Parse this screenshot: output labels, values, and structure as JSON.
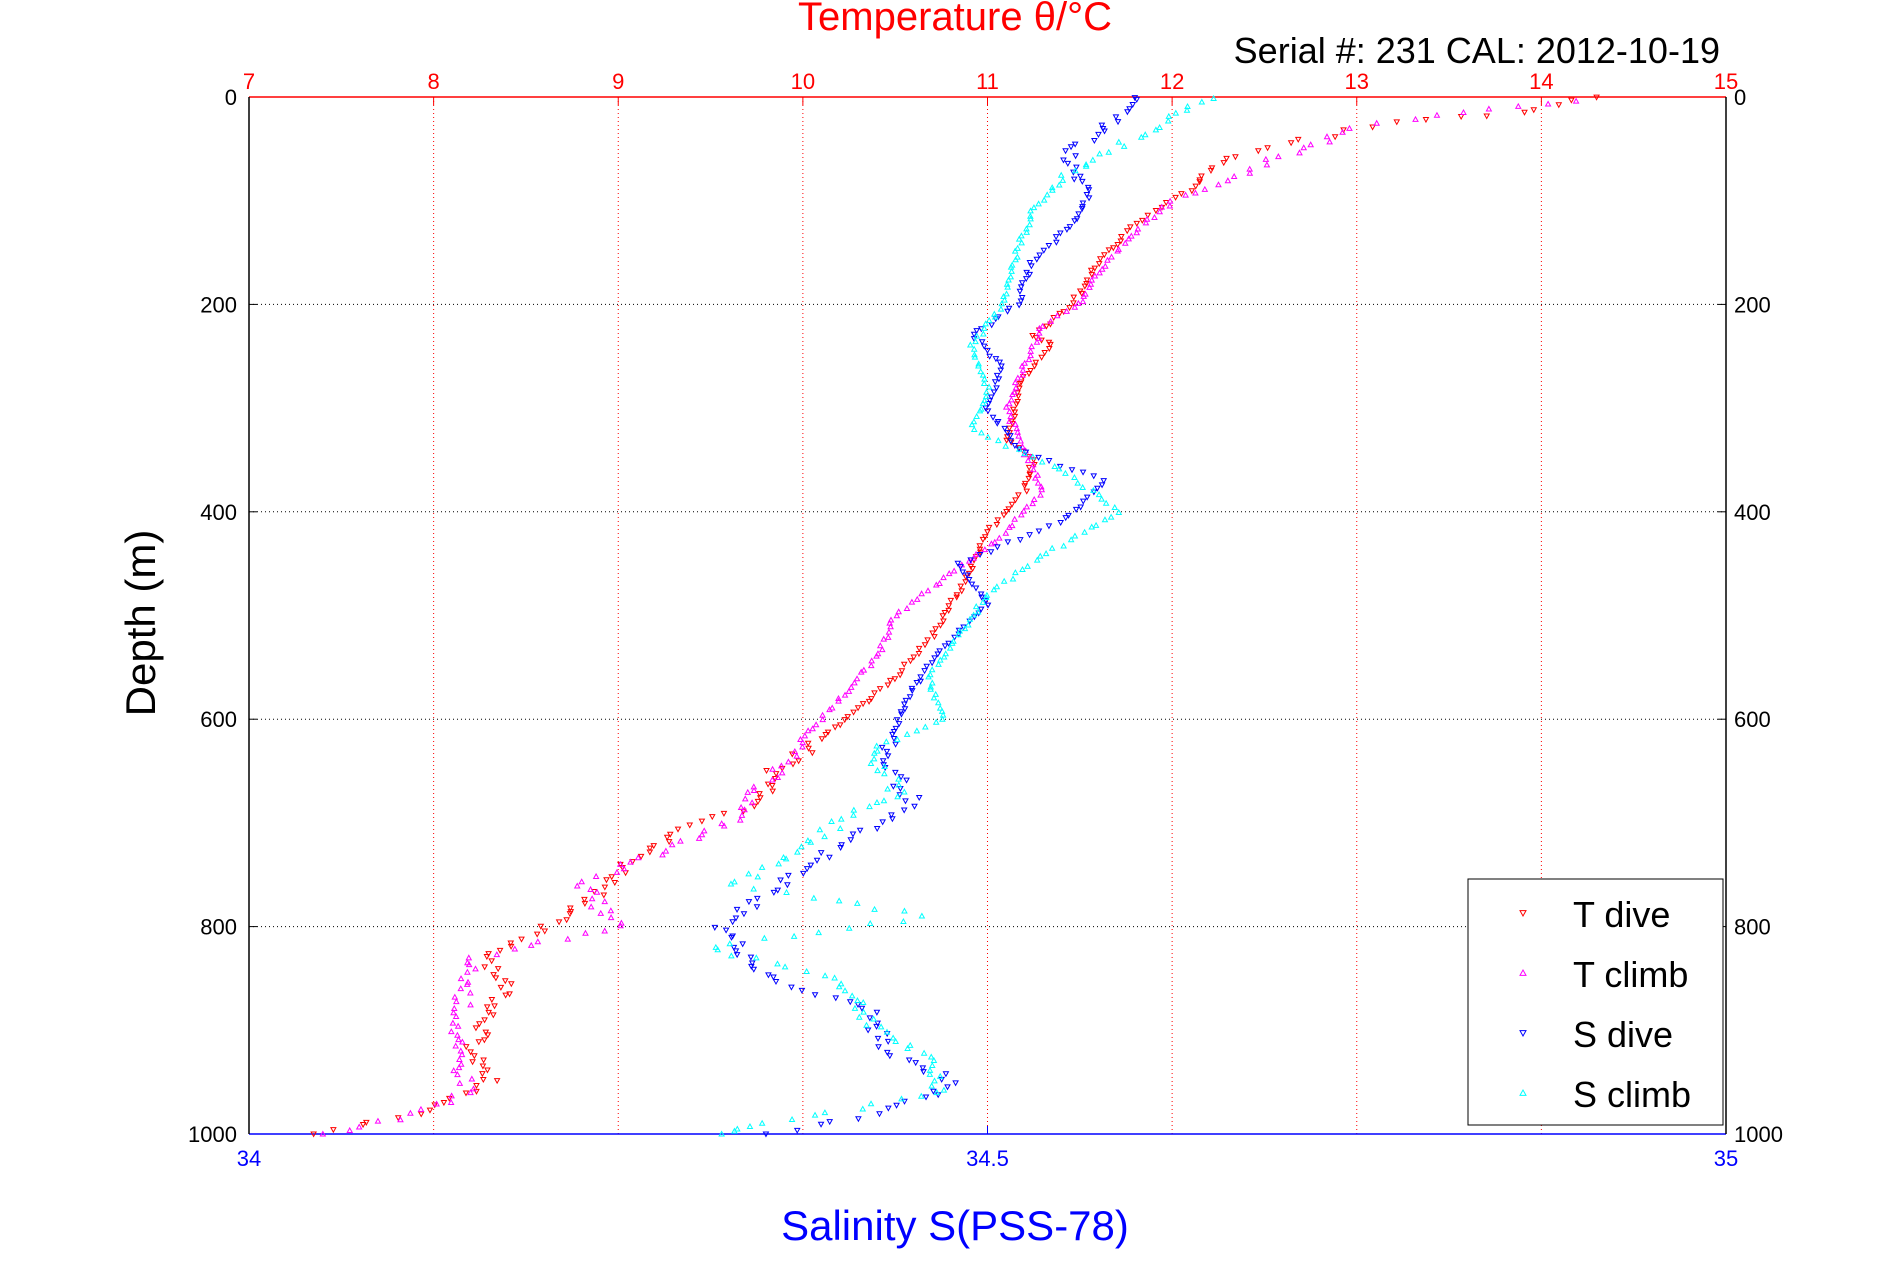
{
  "chart_data": {
    "type": "scatter",
    "title": "Temperature θ/°C",
    "subtitle": "Serial #: 231  CAL: 2012-10-19",
    "ylabel": "Depth (m)",
    "xlabel_bottom": "Salinity S(PSS-78)",
    "y_axis": {
      "range": [
        0,
        1000
      ],
      "reversed": true,
      "ticks": [
        0,
        200,
        400,
        600,
        800,
        1000
      ]
    },
    "x_top_axis": {
      "quantity": "Temperature",
      "range": [
        7,
        15
      ],
      "ticks": [
        7,
        8,
        9,
        10,
        11,
        12,
        13,
        14,
        15
      ],
      "grid": true,
      "grid_color": "#ff0000"
    },
    "x_bottom_axis": {
      "quantity": "Salinity",
      "range": [
        34,
        35
      ],
      "ticks": [
        34,
        34.5,
        35
      ]
    },
    "horizontal_grid": true,
    "legend_position": "bottom-right",
    "colors": {
      "temperature_axis": "#ff0000",
      "salinity_axis": "#0000ff"
    },
    "series": [
      {
        "name": "T dive",
        "axis": "temperature",
        "color": "#ff0000",
        "marker": "triangle-down",
        "points": [
          [
            14.3,
            0
          ],
          [
            13.9,
            15
          ],
          [
            13.2,
            25
          ],
          [
            12.6,
            45
          ],
          [
            12.3,
            60
          ],
          [
            12.1,
            90
          ],
          [
            11.9,
            110
          ],
          [
            11.75,
            130
          ],
          [
            11.6,
            160
          ],
          [
            11.5,
            190
          ],
          [
            11.4,
            210
          ],
          [
            11.25,
            230
          ],
          [
            11.35,
            240
          ],
          [
            11.2,
            270
          ],
          [
            11.15,
            300
          ],
          [
            11.1,
            330
          ],
          [
            11.25,
            350
          ],
          [
            11.2,
            380
          ],
          [
            11.0,
            420
          ],
          [
            10.9,
            460
          ],
          [
            10.8,
            490
          ],
          [
            10.7,
            520
          ],
          [
            10.5,
            560
          ],
          [
            10.3,
            590
          ],
          [
            10.1,
            620
          ],
          [
            9.85,
            650
          ],
          [
            9.8,
            680
          ],
          [
            9.3,
            710
          ],
          [
            9.05,
            740
          ],
          [
            8.9,
            770
          ],
          [
            8.6,
            800
          ],
          [
            8.3,
            830
          ],
          [
            8.4,
            860
          ],
          [
            8.3,
            890
          ],
          [
            8.2,
            920
          ],
          [
            8.3,
            950
          ],
          [
            7.9,
            980
          ],
          [
            7.35,
            1000
          ]
        ]
      },
      {
        "name": "T climb",
        "axis": "temperature",
        "color": "#ff00ff",
        "marker": "triangle-up",
        "points": [
          [
            14.2,
            5
          ],
          [
            13.6,
            15
          ],
          [
            13.0,
            30
          ],
          [
            12.7,
            50
          ],
          [
            12.3,
            80
          ],
          [
            12.0,
            100
          ],
          [
            11.8,
            130
          ],
          [
            11.6,
            170
          ],
          [
            11.5,
            200
          ],
          [
            11.3,
            220
          ],
          [
            11.2,
            260
          ],
          [
            11.1,
            300
          ],
          [
            11.2,
            340
          ],
          [
            11.3,
            380
          ],
          [
            11.1,
            420
          ],
          [
            10.8,
            460
          ],
          [
            10.5,
            500
          ],
          [
            10.4,
            540
          ],
          [
            10.2,
            580
          ],
          [
            10.0,
            620
          ],
          [
            9.8,
            660
          ],
          [
            9.6,
            700
          ],
          [
            9.2,
            730
          ],
          [
            8.8,
            760
          ],
          [
            9.0,
            800
          ],
          [
            8.2,
            830
          ],
          [
            8.15,
            880
          ],
          [
            8.1,
            920
          ],
          [
            8.2,
            960
          ],
          [
            7.8,
            985
          ],
          [
            7.4,
            1000
          ]
        ]
      },
      {
        "name": "S dive",
        "axis": "salinity",
        "color": "#0000ff",
        "marker": "triangle-down",
        "points": [
          [
            34.6,
            0
          ],
          [
            34.58,
            30
          ],
          [
            34.55,
            60
          ],
          [
            34.57,
            90
          ],
          [
            34.56,
            120
          ],
          [
            34.53,
            160
          ],
          [
            34.52,
            200
          ],
          [
            34.49,
            230
          ],
          [
            34.51,
            260
          ],
          [
            34.5,
            300
          ],
          [
            34.52,
            340
          ],
          [
            34.58,
            370
          ],
          [
            34.55,
            410
          ],
          [
            34.48,
            450
          ],
          [
            34.5,
            490
          ],
          [
            34.47,
            530
          ],
          [
            34.45,
            570
          ],
          [
            34.44,
            600
          ],
          [
            34.43,
            640
          ],
          [
            34.45,
            680
          ],
          [
            34.4,
            720
          ],
          [
            34.36,
            760
          ],
          [
            34.32,
            800
          ],
          [
            34.35,
            850
          ],
          [
            34.42,
            880
          ],
          [
            34.43,
            920
          ],
          [
            34.48,
            950
          ],
          [
            34.43,
            980
          ],
          [
            34.35,
            1000
          ]
        ]
      },
      {
        "name": "S climb",
        "axis": "salinity",
        "color": "#00ffff",
        "marker": "triangle-up",
        "points": [
          [
            34.65,
            0
          ],
          [
            34.6,
            40
          ],
          [
            34.55,
            80
          ],
          [
            34.53,
            110
          ],
          [
            34.52,
            150
          ],
          [
            34.51,
            200
          ],
          [
            34.49,
            240
          ],
          [
            34.5,
            280
          ],
          [
            34.49,
            320
          ],
          [
            34.55,
            360
          ],
          [
            34.59,
            400
          ],
          [
            34.54,
            440
          ],
          [
            34.5,
            480
          ],
          [
            34.48,
            520
          ],
          [
            34.46,
            560
          ],
          [
            34.47,
            600
          ],
          [
            34.42,
            630
          ],
          [
            34.44,
            670
          ],
          [
            34.4,
            700
          ],
          [
            34.33,
            760
          ],
          [
            34.46,
            790
          ],
          [
            34.31,
            820
          ],
          [
            34.4,
            850
          ],
          [
            34.42,
            890
          ],
          [
            34.46,
            930
          ],
          [
            34.47,
            960
          ],
          [
            34.35,
            990
          ],
          [
            34.32,
            1000
          ]
        ]
      }
    ]
  }
}
